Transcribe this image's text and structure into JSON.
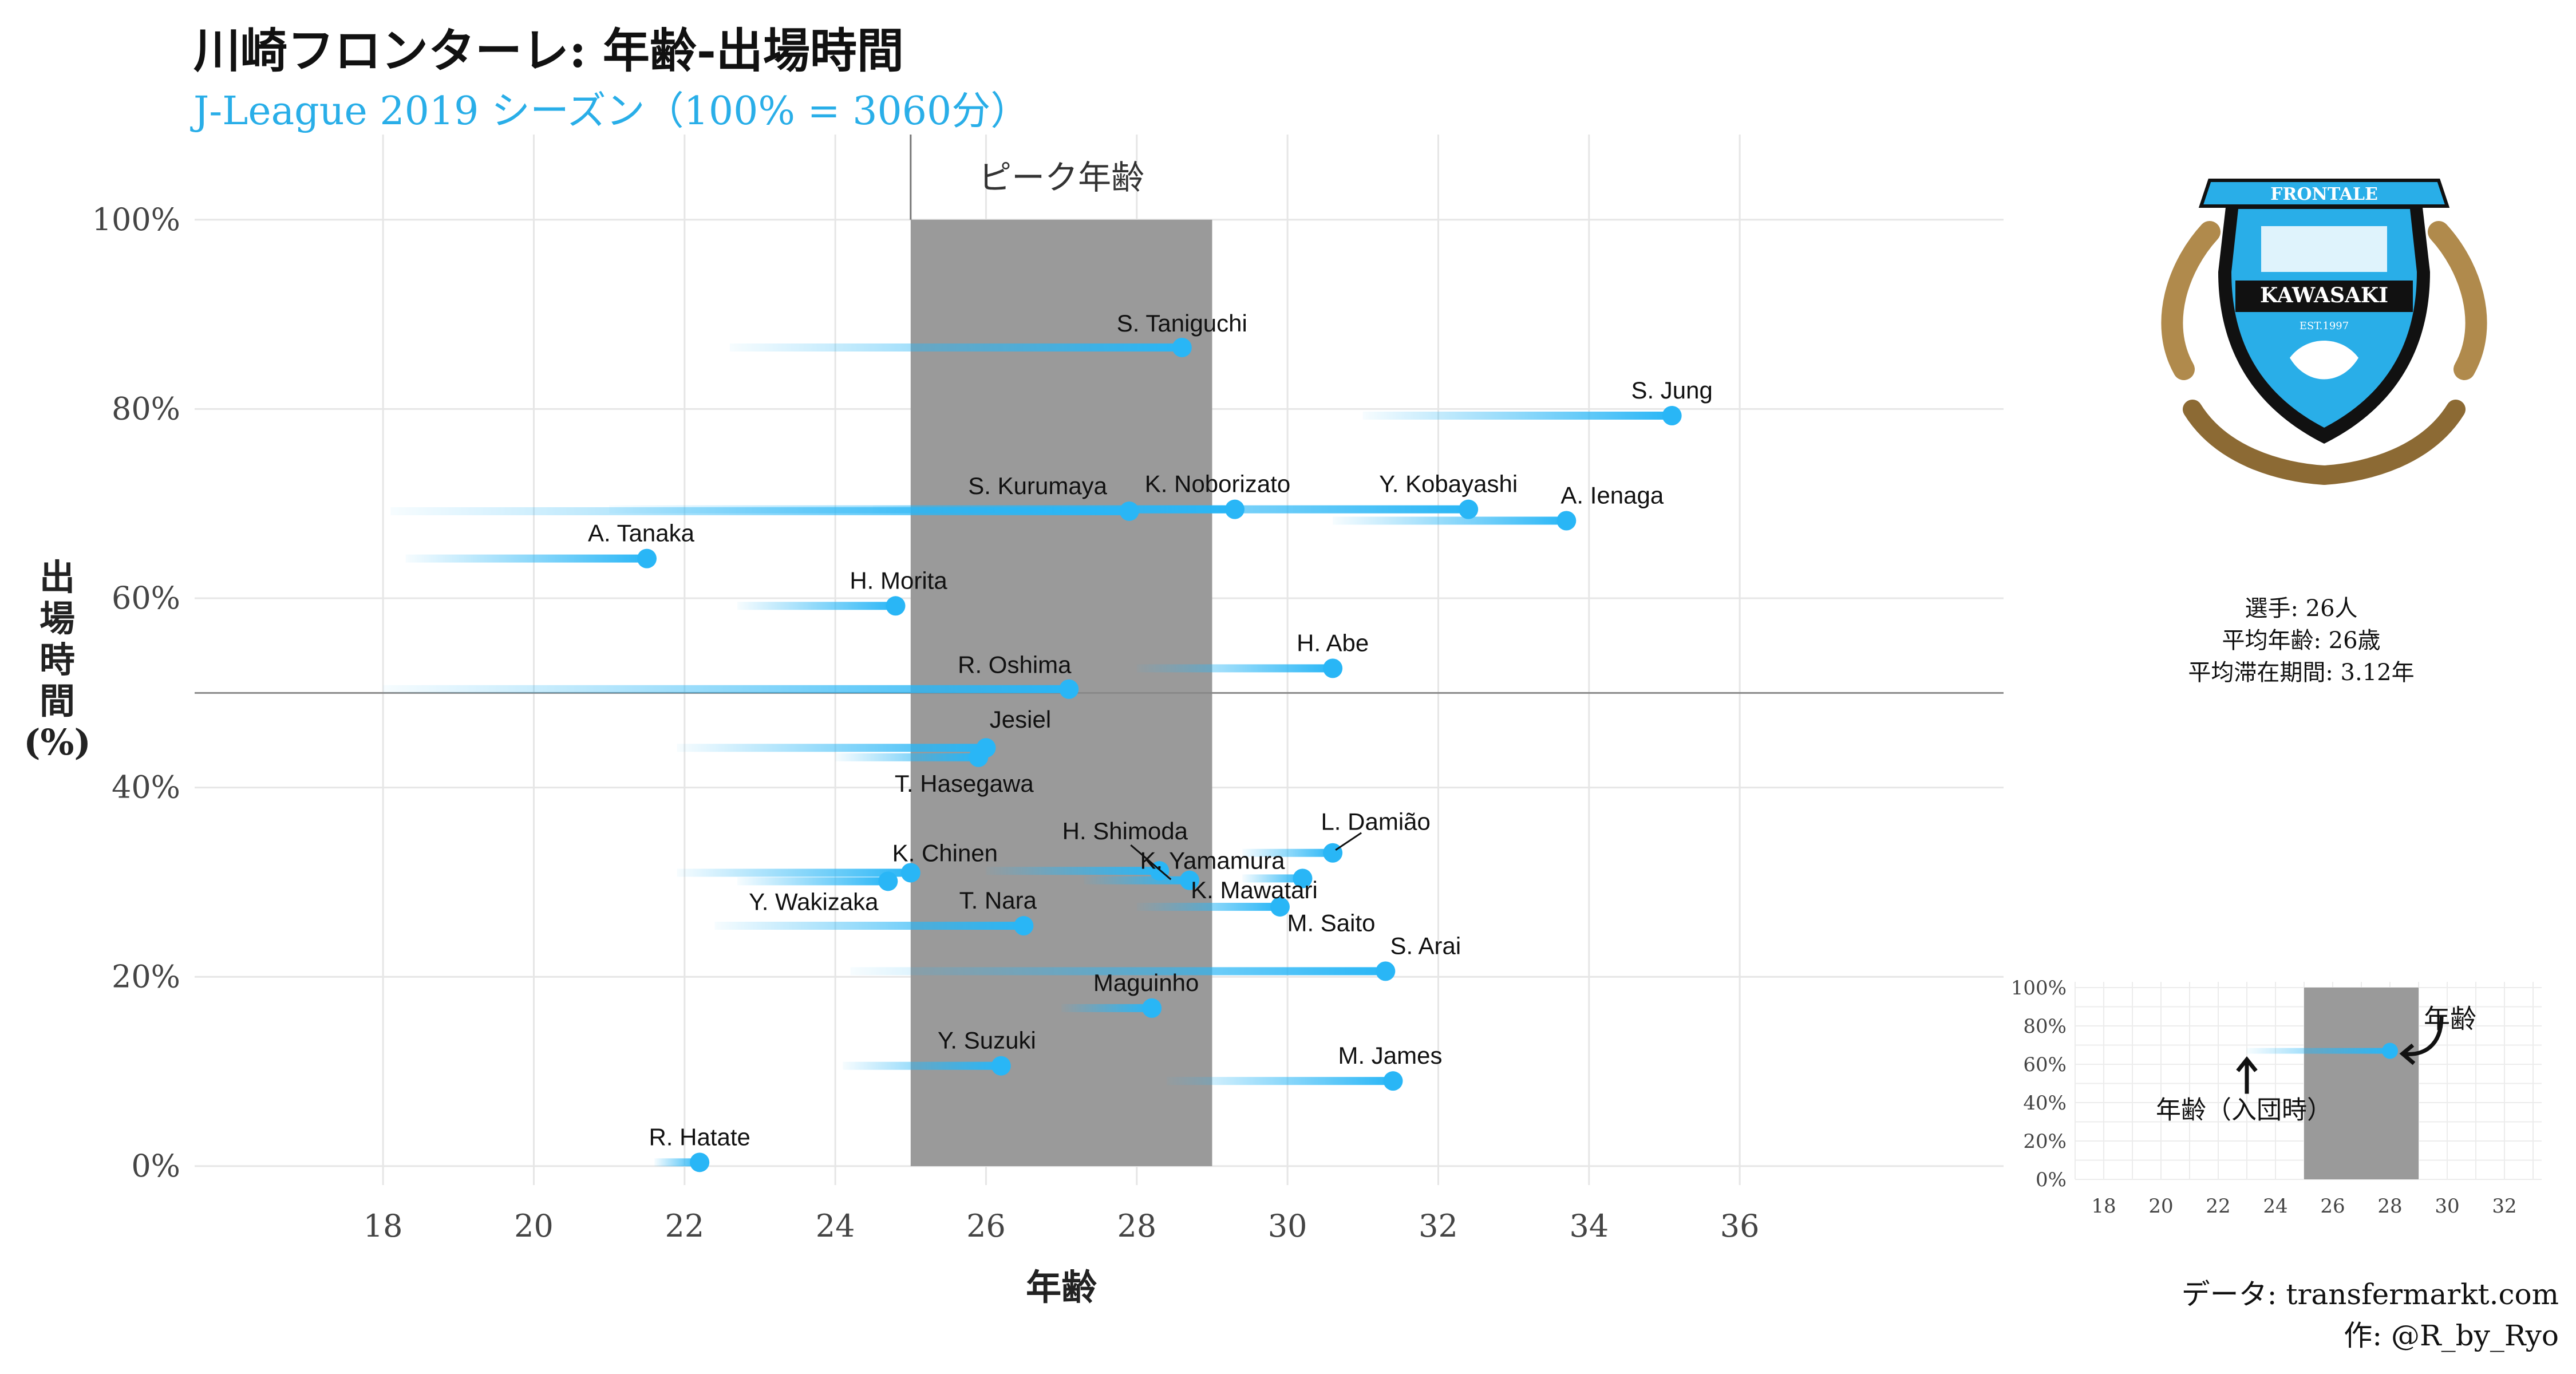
{
  "header": {
    "title": "川崎フロンターレ: 年齢-出場時間",
    "subtitle": "J-League 2019 シーズン（100% = 3060分）"
  },
  "stats": {
    "players": "選手: 26人",
    "avg_age": "平均年齢: 26歳",
    "avg_tenure": "平均滞在期間: 3.12年"
  },
  "caption": {
    "data_source": "データ: transfermarkt.com",
    "author": "作: @R_by_Ryo"
  },
  "logo": {
    "top_text": "FRONTALE",
    "name": "KAWASAKI",
    "est": "EST.1997"
  },
  "colors": {
    "accent": "#29b6f6",
    "peak_band": "#9a9a9a",
    "grid": "#e6e6e6"
  },
  "chart_data": {
    "type": "scatter",
    "xlabel": "年齢",
    "ylabel": "出場時間 (%)",
    "xlim": [
      15.5,
      39.5
    ],
    "ylim": [
      -2,
      109
    ],
    "x_ticks": [
      18,
      20,
      22,
      24,
      26,
      28,
      30,
      32,
      34,
      36
    ],
    "y_ticks": [
      0,
      20,
      40,
      60,
      80,
      100
    ],
    "y_tick_labels": [
      "0%",
      "20%",
      "40%",
      "60%",
      "80%",
      "100%"
    ],
    "peak_age": {
      "label": "ピーク年齢",
      "from": 25,
      "to": 29
    },
    "reference_line_y": 50,
    "players": [
      {
        "name": "S. Taniguchi",
        "age_joined": 22.6,
        "age": 28.6,
        "minutes_pct": 86.5
      },
      {
        "name": "S. Jung",
        "age_joined": 31.0,
        "age": 35.1,
        "minutes_pct": 79.3
      },
      {
        "name": "S. Kurumaya",
        "age_joined": 18.1,
        "age": 27.9,
        "minutes_pct": 69.2
      },
      {
        "name": "K. Noborizato",
        "age_joined": 21.0,
        "age": 29.3,
        "minutes_pct": 69.4
      },
      {
        "name": "Y. Kobayashi",
        "age_joined": 24.5,
        "age": 32.4,
        "minutes_pct": 69.4
      },
      {
        "name": "A. Ienaga",
        "age_joined": 30.6,
        "age": 33.7,
        "minutes_pct": 68.2
      },
      {
        "name": "A. Tanaka",
        "age_joined": 18.3,
        "age": 21.5,
        "minutes_pct": 64.2
      },
      {
        "name": "H. Morita",
        "age_joined": 22.7,
        "age": 24.8,
        "minutes_pct": 59.2
      },
      {
        "name": "H. Abe",
        "age_joined": 28.0,
        "age": 30.6,
        "minutes_pct": 52.6
      },
      {
        "name": "R. Oshima",
        "age_joined": 18.0,
        "age": 27.1,
        "minutes_pct": 50.4
      },
      {
        "name": "Jesiel",
        "age_joined": 21.9,
        "age": 26.0,
        "minutes_pct": 44.2
      },
      {
        "name": "T. Hasegawa",
        "age_joined": 24.0,
        "age": 25.9,
        "minutes_pct": 43.2
      },
      {
        "name": "L. Damião",
        "age_joined": 29.4,
        "age": 30.6,
        "minutes_pct": 33.1
      },
      {
        "name": "H. Shimoda",
        "age_joined": 26.0,
        "age": 28.3,
        "minutes_pct": 31.2
      },
      {
        "name": "K. Chinen",
        "age_joined": 21.9,
        "age": 25.0,
        "minutes_pct": 31.0
      },
      {
        "name": "K. Yamamura",
        "age_joined": 27.3,
        "age": 28.7,
        "minutes_pct": 30.2
      },
      {
        "name": "Y. Wakizaka",
        "age_joined": 22.7,
        "age": 24.7,
        "minutes_pct": 30.1
      },
      {
        "name": "M. Saito",
        "age_joined": 29.4,
        "age": 30.2,
        "minutes_pct": 30.4
      },
      {
        "name": "T. Nara",
        "age_joined": 22.4,
        "age": 26.5,
        "minutes_pct": 25.4
      },
      {
        "name": "K. Mawatari",
        "age_joined": 28.0,
        "age": 29.9,
        "minutes_pct": 27.4
      },
      {
        "name": "S. Arai",
        "age_joined": 24.2,
        "age": 31.3,
        "minutes_pct": 20.6
      },
      {
        "name": "Maguinho",
        "age_joined": 27.0,
        "age": 28.2,
        "minutes_pct": 16.7
      },
      {
        "name": "Y. Suzuki",
        "age_joined": 24.1,
        "age": 26.2,
        "minutes_pct": 10.6
      },
      {
        "name": "M. James",
        "age_joined": 28.4,
        "age": 31.4,
        "minutes_pct": 9.0
      },
      {
        "name": "R. Hatate",
        "age_joined": 21.6,
        "age": 22.2,
        "minutes_pct": 0.4
      }
    ],
    "legend_inset": {
      "ymax_label": "100%",
      "ages": [
        18,
        20,
        22,
        24,
        26,
        28,
        30,
        32
      ],
      "example": {
        "age_joined": 23,
        "age": 28,
        "minutes_pct": 67
      },
      "label_age": "年齢",
      "label_joined": "年齢（入団時）"
    }
  }
}
